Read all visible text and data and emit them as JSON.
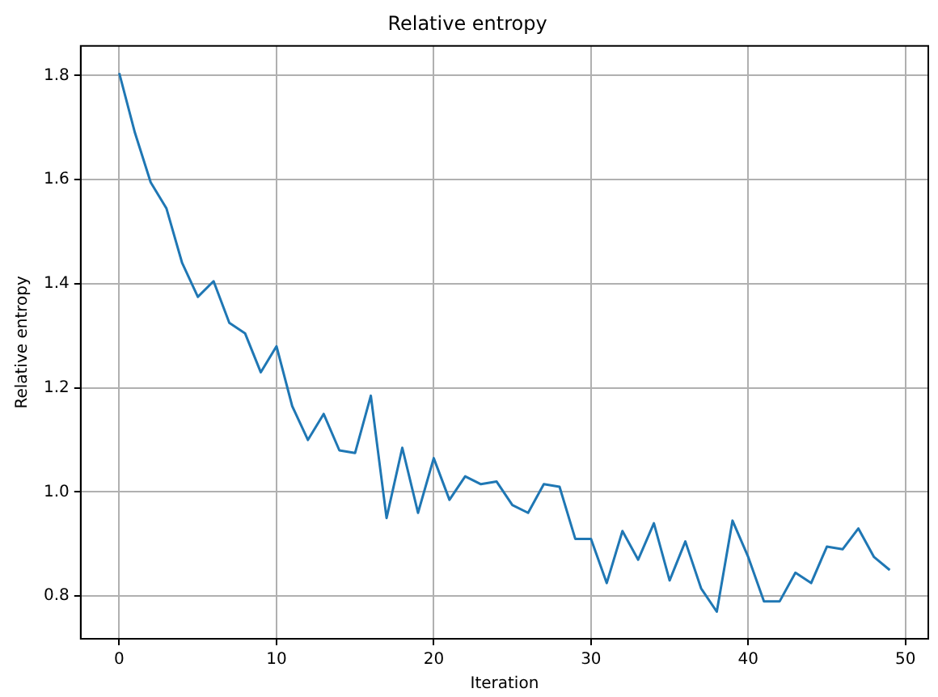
{
  "chart_data": {
    "type": "line",
    "title": "Relative entropy",
    "xlabel": "Iteration",
    "ylabel": "Relative entropy",
    "x": [
      0,
      1,
      2,
      3,
      4,
      5,
      6,
      7,
      8,
      9,
      10,
      11,
      12,
      13,
      14,
      15,
      16,
      17,
      18,
      19,
      20,
      21,
      22,
      23,
      24,
      25,
      26,
      27,
      28,
      29,
      30,
      31,
      32,
      33,
      34,
      35,
      36,
      37,
      38,
      39,
      40,
      41,
      42,
      43,
      44,
      45,
      46,
      47,
      48,
      49
    ],
    "series": [
      {
        "color": "#1f77b4",
        "values": [
          1.805,
          1.69,
          1.595,
          1.545,
          1.44,
          1.375,
          1.405,
          1.325,
          1.305,
          1.23,
          1.28,
          1.165,
          1.1,
          1.15,
          1.08,
          1.075,
          1.185,
          0.95,
          1.085,
          0.96,
          1.065,
          0.985,
          1.03,
          1.015,
          1.02,
          0.975,
          0.96,
          1.015,
          1.01,
          0.91,
          0.91,
          0.825,
          0.925,
          0.87,
          0.94,
          0.83,
          0.905,
          0.815,
          0.77,
          0.945,
          0.875,
          0.79,
          0.79,
          0.845,
          0.825,
          0.895,
          0.89,
          0.93,
          0.875,
          0.85
        ]
      }
    ],
    "xlim": [
      -2.45,
      51.45
    ],
    "ylim": [
      0.718,
      1.857
    ],
    "xticks": [
      0,
      10,
      20,
      30,
      40,
      50
    ],
    "yticks": [
      0.8,
      {
        "value": 1,
        "label": "1.0"
      },
      1.2,
      1.4,
      1.6,
      1.8
    ],
    "grid": true,
    "legend": false,
    "marker": "none",
    "line_style": "solid"
  }
}
